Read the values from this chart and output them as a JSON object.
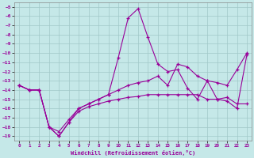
{
  "xlabel": "Windchill (Refroidissement éolien,°C)",
  "xlim": [
    -0.5,
    23.5
  ],
  "ylim": [
    -19.5,
    -4.5
  ],
  "yticks": [
    -5,
    -6,
    -7,
    -8,
    -9,
    -10,
    -11,
    -12,
    -13,
    -14,
    -15,
    -16,
    -17,
    -18,
    -19
  ],
  "xticks": [
    0,
    1,
    2,
    3,
    4,
    5,
    6,
    7,
    8,
    9,
    10,
    11,
    12,
    13,
    14,
    15,
    16,
    17,
    18,
    19,
    20,
    21,
    22,
    23
  ],
  "bg_color": "#c5e8e8",
  "grid_color": "#a0c8c8",
  "line_color": "#990099",
  "series": [
    {
      "x": [
        0,
        1,
        2,
        3,
        4,
        5,
        6,
        7,
        8,
        9,
        10,
        11,
        12,
        13,
        14,
        15,
        16,
        17,
        18,
        19,
        20,
        21,
        22,
        23
      ],
      "y": [
        -13.5,
        -14.0,
        -14.0,
        -18.0,
        -19.0,
        -17.5,
        -16.3,
        -15.8,
        -15.5,
        -15.2,
        -15.0,
        -14.8,
        -14.7,
        -14.5,
        -14.5,
        -14.5,
        -14.5,
        -14.5,
        -14.5,
        -15.0,
        -15.0,
        -14.8,
        -15.5,
        -15.5
      ]
    },
    {
      "x": [
        0,
        1,
        2,
        3,
        4,
        5,
        6,
        7,
        8,
        9,
        10,
        11,
        12,
        13,
        14,
        15,
        16,
        17,
        18,
        19,
        20,
        21,
        22,
        23
      ],
      "y": [
        -13.5,
        -14.0,
        -14.0,
        -18.0,
        -19.0,
        -17.5,
        -16.0,
        -15.5,
        -15.0,
        -14.5,
        -10.5,
        -6.2,
        -5.2,
        -8.3,
        -11.2,
        -12.0,
        -11.8,
        -13.8,
        -15.0,
        -13.0,
        -15.0,
        -15.2,
        -16.0,
        -10.2
      ]
    },
    {
      "x": [
        0,
        1,
        2,
        3,
        4,
        5,
        6,
        7,
        8,
        9,
        10,
        11,
        12,
        13,
        14,
        15,
        16,
        17,
        18,
        19,
        20,
        21,
        22,
        23
      ],
      "y": [
        -13.5,
        -14.0,
        -14.0,
        -18.0,
        -18.5,
        -17.2,
        -16.0,
        -15.5,
        -15.0,
        -14.5,
        -14.0,
        -13.5,
        -13.2,
        -13.0,
        -12.5,
        -13.5,
        -11.2,
        -11.5,
        -12.5,
        -13.0,
        -13.2,
        -13.5,
        -11.8,
        -10.0
      ]
    }
  ]
}
